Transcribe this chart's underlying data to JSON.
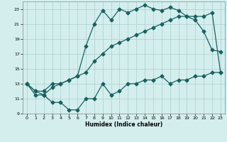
{
  "xlabel": "Humidex (Indice chaleur)",
  "bg_color": "#d4eeee",
  "grid_color": "#aacece",
  "line_color": "#1a6060",
  "xlim": [
    -0.5,
    23.5
  ],
  "ylim": [
    9,
    24
  ],
  "xticks": [
    0,
    1,
    2,
    3,
    4,
    5,
    6,
    7,
    8,
    9,
    10,
    11,
    12,
    13,
    14,
    15,
    16,
    17,
    18,
    19,
    20,
    21,
    22,
    23
  ],
  "yticks": [
    9,
    11,
    13,
    15,
    17,
    19,
    21,
    23
  ],
  "curve1_x": [
    0,
    1,
    2,
    3,
    4,
    5,
    6,
    7,
    8,
    9,
    10,
    11,
    12,
    13,
    14,
    15,
    16,
    17,
    18,
    19,
    20,
    21,
    22,
    23
  ],
  "curve1_y": [
    13,
    11.5,
    11.5,
    10.5,
    10.5,
    9.5,
    9.5,
    11,
    11,
    13,
    11.5,
    12,
    13,
    13,
    13.5,
    13.5,
    14,
    13,
    13.5,
    13.5,
    14,
    14,
    14.5,
    14.5
  ],
  "curve2_x": [
    0,
    1,
    2,
    3,
    4,
    5,
    6,
    7,
    8,
    9,
    10,
    11,
    12,
    13,
    14,
    15,
    16,
    17,
    18,
    19,
    20,
    21,
    22,
    23
  ],
  "curve2_y": [
    13,
    12,
    11.5,
    12.5,
    13,
    13.5,
    14,
    18,
    21,
    22.8,
    21.5,
    23,
    22.5,
    23,
    23.5,
    23,
    22.8,
    23.2,
    22.8,
    22,
    21.5,
    20,
    17.5,
    17.3
  ],
  "curve3_x": [
    0,
    1,
    2,
    3,
    4,
    5,
    6,
    7,
    8,
    9,
    10,
    11,
    12,
    13,
    14,
    15,
    16,
    17,
    18,
    19,
    20,
    21,
    22,
    23
  ],
  "curve3_y": [
    13,
    12,
    12,
    13,
    13,
    13.5,
    14,
    14.5,
    16,
    17,
    18,
    18.5,
    19,
    19.5,
    20,
    20.5,
    21,
    21.5,
    22,
    22,
    22,
    22,
    22.5,
    14.5
  ]
}
